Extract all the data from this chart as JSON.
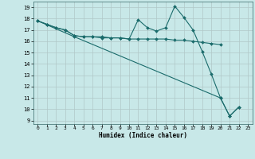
{
  "xlabel": "Humidex (Indice chaleur)",
  "ylabel": "",
  "xlim": [
    -0.5,
    23.5
  ],
  "ylim": [
    8.7,
    19.5
  ],
  "yticks": [
    9,
    10,
    11,
    12,
    13,
    14,
    15,
    16,
    17,
    18,
    19
  ],
  "xticks": [
    0,
    1,
    2,
    3,
    4,
    5,
    6,
    7,
    8,
    9,
    10,
    11,
    12,
    13,
    14,
    15,
    16,
    17,
    18,
    19,
    20,
    21,
    22,
    23
  ],
  "bg_color": "#c8e8e8",
  "grid_color": "#b0c8c8",
  "line_color": "#1a6b6b",
  "line1_x": [
    0,
    1,
    2,
    3,
    4,
    5,
    6,
    7,
    8,
    9,
    10,
    11,
    12,
    13,
    14,
    15,
    16,
    17,
    18,
    19,
    20,
    21,
    22
  ],
  "line1_y": [
    17.8,
    17.5,
    17.2,
    17.0,
    16.5,
    16.4,
    16.4,
    16.3,
    16.3,
    16.3,
    16.2,
    17.9,
    17.2,
    16.9,
    17.2,
    19.1,
    18.1,
    17.0,
    15.1,
    13.1,
    11.0,
    9.4,
    10.2
  ],
  "line2_x": [
    0,
    1,
    2,
    3,
    4,
    5,
    6,
    7,
    8,
    9,
    10,
    11,
    12,
    13,
    14,
    15,
    16,
    17,
    18,
    19,
    20
  ],
  "line2_y": [
    17.8,
    17.5,
    17.2,
    17.0,
    16.5,
    16.4,
    16.4,
    16.4,
    16.3,
    16.3,
    16.2,
    16.2,
    16.2,
    16.2,
    16.2,
    16.1,
    16.1,
    16.0,
    15.9,
    15.8,
    15.7
  ],
  "line3_x": [
    0,
    4,
    20,
    21,
    22
  ],
  "line3_y": [
    17.8,
    16.4,
    11.0,
    9.4,
    10.2
  ],
  "marker_size": 2.0,
  "line_width": 0.8
}
